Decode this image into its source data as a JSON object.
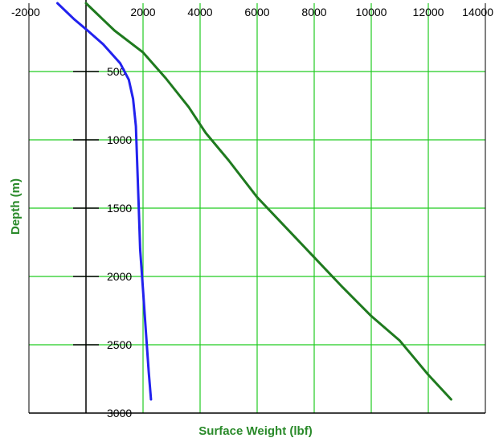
{
  "chart_data": {
    "type": "line",
    "title": "",
    "xlabel": "Surface Weight (lbf)",
    "ylabel": "Depth (m)",
    "xlim": [
      -2000,
      14000
    ],
    "ylim": [
      0,
      3000
    ],
    "y_inverted": true,
    "x_ticks": [
      "-2000",
      "2000",
      "4000",
      "6000",
      "8000",
      "10000",
      "12000",
      "14000"
    ],
    "y_ticks": [
      "500",
      "1000",
      "1500",
      "2000",
      "2500",
      "3000"
    ],
    "grid": true,
    "colors": {
      "grid": "#22cc22",
      "label": "#2a8a2a",
      "axis": "#000000"
    },
    "series": [
      {
        "color": "#1f7a1f",
        "points": [
          [
            0,
            0
          ],
          [
            1000,
            200
          ],
          [
            2000,
            360
          ],
          [
            2800,
            550
          ],
          [
            3600,
            760
          ],
          [
            4200,
            950
          ],
          [
            5000,
            1150
          ],
          [
            6000,
            1420
          ],
          [
            7000,
            1640
          ],
          [
            8000,
            1860
          ],
          [
            9000,
            2080
          ],
          [
            10000,
            2290
          ],
          [
            11000,
            2470
          ],
          [
            12000,
            2720
          ],
          [
            12800,
            2900
          ]
        ]
      },
      {
        "color": "#2222ee",
        "points": [
          [
            -1000,
            0
          ],
          [
            -400,
            120
          ],
          [
            0,
            190
          ],
          [
            600,
            300
          ],
          [
            1200,
            440
          ],
          [
            1500,
            560
          ],
          [
            1650,
            700
          ],
          [
            1750,
            900
          ],
          [
            1800,
            1200
          ],
          [
            1850,
            1500
          ],
          [
            1900,
            1800
          ],
          [
            2000,
            2100
          ],
          [
            2100,
            2400
          ],
          [
            2200,
            2700
          ],
          [
            2280,
            2900
          ]
        ]
      }
    ]
  }
}
